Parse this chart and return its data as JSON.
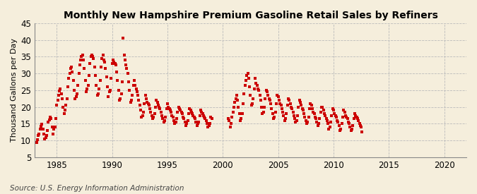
{
  "title": "Monthly New Hampshire Premium Gasoline Retail Sales by Refiners",
  "ylabel": "Thousand Gallons per Day",
  "source": "Source: U.S. Energy Information Administration",
  "background_color": "#f5eedc",
  "marker_color": "#cc0000",
  "xlim": [
    1983,
    2022
  ],
  "ylim": [
    5,
    45
  ],
  "yticks": [
    5,
    10,
    15,
    20,
    25,
    30,
    35,
    40,
    45
  ],
  "xticks": [
    1985,
    1990,
    1995,
    2000,
    2005,
    2010,
    2015,
    2020
  ],
  "start_year": 1983,
  "start_month": 3,
  "values": [
    9.5,
    10.2,
    11.5,
    12.0,
    13.5,
    14.2,
    14.8,
    13.5,
    12.0,
    10.5,
    10.8,
    11.5,
    13.0,
    15.5,
    16.2,
    17.0,
    16.5,
    14.0,
    12.0,
    13.5,
    14.0,
    16.5,
    20.5,
    22.0,
    23.5,
    24.8,
    25.5,
    24.0,
    22.5,
    20.0,
    18.0,
    19.0,
    20.5,
    22.5,
    26.0,
    28.5,
    30.0,
    31.5,
    32.0,
    30.5,
    28.0,
    25.0,
    22.5,
    23.0,
    24.0,
    26.5,
    30.0,
    32.5,
    34.0,
    35.0,
    35.5,
    34.0,
    31.5,
    28.0,
    24.5,
    25.5,
    26.5,
    29.5,
    33.0,
    35.0,
    35.5,
    35.0,
    34.5,
    32.0,
    29.5,
    26.5,
    23.5,
    24.0,
    25.5,
    28.0,
    32.0,
    34.5,
    35.5,
    34.0,
    33.5,
    31.5,
    29.0,
    26.0,
    23.0,
    24.5,
    25.0,
    28.5,
    33.0,
    34.0,
    33.5,
    33.0,
    32.5,
    30.5,
    28.0,
    25.0,
    22.0,
    22.5,
    24.0,
    27.5,
    40.5,
    35.5,
    34.0,
    32.5,
    31.5,
    30.0,
    27.5,
    25.0,
    21.5,
    22.0,
    23.5,
    26.5,
    28.0,
    26.5,
    25.5,
    24.5,
    23.5,
    22.0,
    20.5,
    19.0,
    17.0,
    17.5,
    18.5,
    21.0,
    23.5,
    22.5,
    21.5,
    21.0,
    20.5,
    19.5,
    18.5,
    17.5,
    16.5,
    17.0,
    18.0,
    20.0,
    22.0,
    21.5,
    20.5,
    20.0,
    19.5,
    18.5,
    17.5,
    16.5,
    15.5,
    16.0,
    17.0,
    19.5,
    21.0,
    20.0,
    19.5,
    19.0,
    18.5,
    17.5,
    17.0,
    16.0,
    15.0,
    15.5,
    16.5,
    18.5,
    20.0,
    19.5,
    19.0,
    18.5,
    18.0,
    17.0,
    16.5,
    15.5,
    14.5,
    15.0,
    16.0,
    18.0,
    19.5,
    19.0,
    18.5,
    18.0,
    17.5,
    17.0,
    16.5,
    15.5,
    14.5,
    15.0,
    15.5,
    17.5,
    19.0,
    18.5,
    18.0,
    17.5,
    17.0,
    16.5,
    16.0,
    15.0,
    14.0,
    14.5,
    15.0,
    17.0,
    16.5,
    null,
    null,
    null,
    null,
    null,
    null,
    null,
    null,
    null,
    null,
    null,
    null,
    null,
    null,
    null,
    null,
    null,
    16.5,
    16.0,
    14.0,
    15.0,
    17.0,
    18.5,
    20.0,
    21.5,
    22.5,
    23.5,
    22.0,
    20.0,
    18.0,
    16.0,
    16.5,
    18.0,
    21.0,
    24.0,
    26.5,
    28.0,
    29.5,
    30.0,
    28.5,
    26.0,
    23.5,
    20.5,
    21.0,
    22.5,
    25.5,
    28.5,
    27.0,
    26.5,
    25.5,
    25.0,
    23.5,
    22.0,
    20.0,
    18.0,
    18.5,
    20.0,
    22.5,
    25.0,
    24.5,
    23.5,
    22.5,
    22.0,
    21.0,
    19.5,
    18.0,
    16.5,
    17.0,
    18.5,
    21.0,
    23.5,
    23.0,
    22.0,
    21.0,
    20.5,
    19.5,
    18.5,
    17.5,
    16.0,
    16.5,
    18.0,
    20.5,
    22.5,
    22.0,
    21.0,
    20.0,
    19.5,
    18.5,
    17.5,
    16.5,
    15.5,
    16.0,
    17.5,
    20.0,
    22.0,
    21.5,
    20.5,
    19.5,
    19.0,
    18.0,
    17.0,
    16.0,
    15.0,
    15.5,
    17.0,
    19.5,
    21.0,
    20.5,
    19.5,
    18.5,
    18.0,
    17.0,
    16.5,
    15.5,
    14.5,
    15.0,
    16.5,
    18.5,
    20.0,
    20.0,
    19.0,
    18.0,
    17.5,
    16.5,
    16.0,
    15.0,
    13.5,
    14.0,
    15.5,
    17.5,
    19.5,
    19.0,
    18.0,
    17.5,
    17.0,
    16.0,
    15.5,
    14.5,
    13.0,
    13.5,
    15.0,
    17.0,
    19.0,
    18.5,
    17.5,
    17.0,
    16.5,
    15.5,
    15.0,
    14.0,
    13.0,
    13.5,
    14.5,
    16.5,
    18.0,
    17.5,
    17.0,
    16.5,
    16.0,
    15.0,
    14.5,
    14.0,
    12.5,
    null,
    null,
    null,
    null,
    null,
    null,
    null,
    null,
    null,
    null,
    null,
    null
  ]
}
